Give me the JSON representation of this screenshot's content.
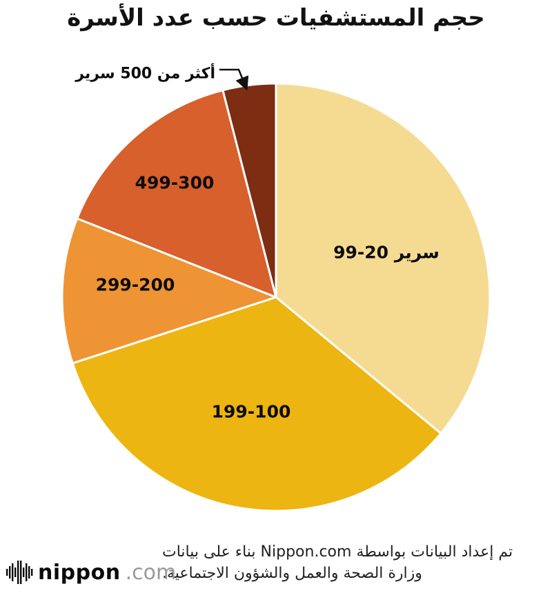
{
  "title": "حجم المستشفيات حسب عدد الأسرة",
  "chart_data": {
    "type": "pie",
    "title": "حجم المستشفيات حسب عدد الأسرة",
    "values_are_estimated_percent": true,
    "start_angle_deg": -90,
    "direction": "clockwise",
    "legend_position": "labels-on-slices",
    "segments": [
      {
        "label": "99-20 سرير",
        "value": 36,
        "color": "#F5DB92"
      },
      {
        "label": "199-100",
        "value": 34,
        "color": "#EDB511"
      },
      {
        "label": "299-200",
        "value": 11,
        "color": "#EE9434"
      },
      {
        "label": "499-300",
        "value": 15,
        "color": "#D7602C"
      },
      {
        "label": "أكثر من 500 سرير",
        "value": 4,
        "color": "#7C2D12",
        "callout": true
      }
    ]
  },
  "footer": {
    "attribution_line1": "تم إعداد البيانات بواسطة Nippon.com بناء على بيانات",
    "attribution_line2": "وزارة الصحة والعمل والشؤون الاجتماعية.",
    "logo": {
      "name": "nippon",
      "tld": ".com"
    }
  }
}
